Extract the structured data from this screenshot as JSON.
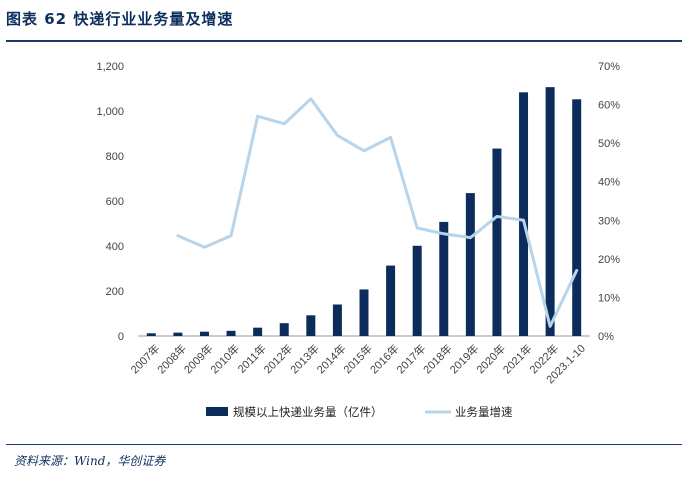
{
  "title": "图表 62   快递行业业务量及增速",
  "source": "资料来源：Wind，华创证券",
  "colors": {
    "bar": "#0c2d5c",
    "line": "#b8d4ea",
    "rule": "#1a3a6b"
  },
  "chart_data": {
    "type": "bar",
    "categories": [
      "2007年",
      "2008年",
      "2009年",
      "2010年",
      "2011年",
      "2012年",
      "2013年",
      "2014年",
      "2015年",
      "2016年",
      "2017年",
      "2018年",
      "2019年",
      "2020年",
      "2021年",
      "2022年",
      "2023.1-10"
    ],
    "series": [
      {
        "name": "规模以上快递业务量（亿件）",
        "type": "bar",
        "axis": "left",
        "values": [
          12,
          15,
          19,
          23,
          37,
          57,
          92,
          140,
          207,
          313,
          401,
          507,
          635,
          833,
          1083,
          1106,
          1052
        ]
      },
      {
        "name": "业务量增速",
        "type": "line",
        "axis": "right",
        "values": [
          null,
          26,
          23,
          26,
          57,
          55,
          61.5,
          52,
          48,
          51.5,
          28,
          26.5,
          25.5,
          31,
          30,
          2.5,
          17
        ]
      }
    ],
    "y_left": {
      "ylim": [
        0,
        1200
      ],
      "ticks": [
        "0",
        "200",
        "400",
        "600",
        "800",
        "1,000",
        "1,200"
      ]
    },
    "y_right": {
      "ylim": [
        0,
        70
      ],
      "ticks": [
        "0%",
        "10%",
        "20%",
        "30%",
        "40%",
        "50%",
        "60%",
        "70%"
      ]
    },
    "grid": false,
    "legend": "bottom"
  }
}
